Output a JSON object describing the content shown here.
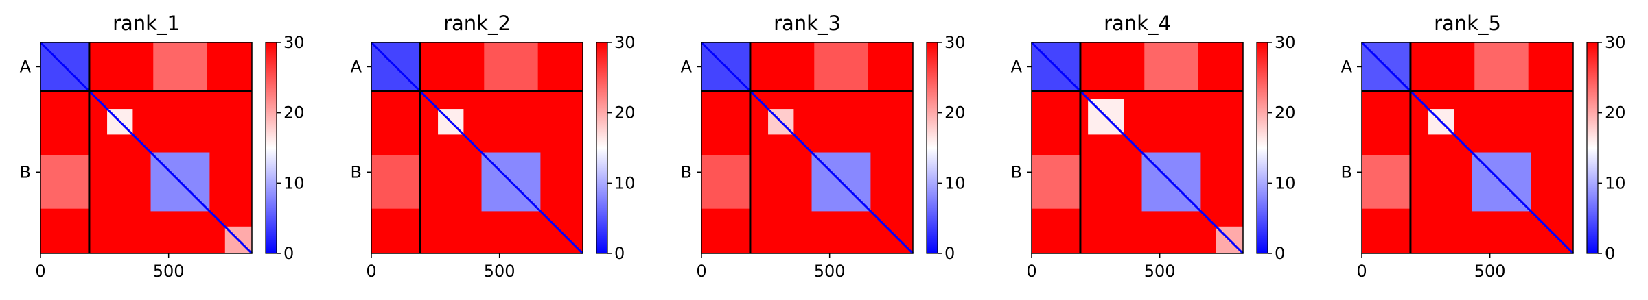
{
  "chart_data": [
    {
      "type": "heatmap",
      "title": "rank_1",
      "xlabel": "",
      "ylabel": "",
      "x_range": [
        0,
        825
      ],
      "x_ticks": [
        0,
        500
      ],
      "y_range": [
        0,
        825
      ],
      "chain_boundary": 190,
      "y_categories": [
        {
          "label": "A",
          "center": 95
        },
        {
          "label": "B",
          "center": 507
        }
      ],
      "colorbar": {
        "min": 0,
        "max": 30,
        "ticks": [
          0,
          10,
          20,
          30
        ],
        "colors": [
          "#0000ff",
          "#ffffff",
          "#ff0000"
        ]
      },
      "blocks": [
        {
          "x0": 0,
          "x1": 190,
          "y0": 0,
          "y1": 190,
          "value": 4
        },
        {
          "x0": 430,
          "x1": 660,
          "y0": 430,
          "y1": 660,
          "value": 8
        },
        {
          "x0": 260,
          "x1": 360,
          "y0": 260,
          "y1": 360,
          "value": 16
        },
        {
          "x0": 720,
          "x1": 825,
          "y0": 720,
          "y1": 825,
          "value": 20
        },
        {
          "x0": 440,
          "x1": 650,
          "y0": 0,
          "y1": 190,
          "value": 24
        },
        {
          "x0": 0,
          "x1": 190,
          "y0": 440,
          "y1": 650,
          "value": 24
        }
      ]
    },
    {
      "type": "heatmap",
      "title": "rank_2",
      "xlabel": "",
      "ylabel": "",
      "x_range": [
        0,
        825
      ],
      "x_ticks": [
        0,
        500
      ],
      "y_range": [
        0,
        825
      ],
      "chain_boundary": 190,
      "y_categories": [
        {
          "label": "A",
          "center": 95
        },
        {
          "label": "B",
          "center": 507
        }
      ],
      "colorbar": {
        "min": 0,
        "max": 30,
        "ticks": [
          0,
          10,
          20,
          30
        ],
        "colors": [
          "#0000ff",
          "#ffffff",
          "#ff0000"
        ]
      },
      "blocks": [
        {
          "x0": 0,
          "x1": 190,
          "y0": 0,
          "y1": 190,
          "value": 4
        },
        {
          "x0": 430,
          "x1": 660,
          "y0": 430,
          "y1": 660,
          "value": 8
        },
        {
          "x0": 260,
          "x1": 360,
          "y0": 260,
          "y1": 360,
          "value": 16
        },
        {
          "x0": 440,
          "x1": 650,
          "y0": 0,
          "y1": 190,
          "value": 25
        },
        {
          "x0": 0,
          "x1": 190,
          "y0": 440,
          "y1": 650,
          "value": 25
        }
      ]
    },
    {
      "type": "heatmap",
      "title": "rank_3",
      "xlabel": "",
      "ylabel": "",
      "x_range": [
        0,
        825
      ],
      "x_ticks": [
        0,
        500
      ],
      "y_range": [
        0,
        825
      ],
      "chain_boundary": 190,
      "y_categories": [
        {
          "label": "A",
          "center": 95
        },
        {
          "label": "B",
          "center": 507
        }
      ],
      "colorbar": {
        "min": 0,
        "max": 30,
        "ticks": [
          0,
          10,
          20,
          30
        ],
        "colors": [
          "#0000ff",
          "#ffffff",
          "#ff0000"
        ]
      },
      "blocks": [
        {
          "x0": 0,
          "x1": 190,
          "y0": 0,
          "y1": 190,
          "value": 4
        },
        {
          "x0": 430,
          "x1": 660,
          "y0": 430,
          "y1": 660,
          "value": 8
        },
        {
          "x0": 260,
          "x1": 360,
          "y0": 260,
          "y1": 360,
          "value": 18
        },
        {
          "x0": 440,
          "x1": 650,
          "y0": 0,
          "y1": 190,
          "value": 25
        },
        {
          "x0": 0,
          "x1": 190,
          "y0": 440,
          "y1": 650,
          "value": 25
        }
      ]
    },
    {
      "type": "heatmap",
      "title": "rank_4",
      "xlabel": "",
      "ylabel": "",
      "x_range": [
        0,
        825
      ],
      "x_ticks": [
        0,
        500
      ],
      "y_range": [
        0,
        825
      ],
      "chain_boundary": 190,
      "y_categories": [
        {
          "label": "A",
          "center": 95
        },
        {
          "label": "B",
          "center": 507
        }
      ],
      "colorbar": {
        "min": 0,
        "max": 30,
        "ticks": [
          0,
          10,
          20,
          30
        ],
        "colors": [
          "#0000ff",
          "#ffffff",
          "#ff0000"
        ]
      },
      "blocks": [
        {
          "x0": 0,
          "x1": 190,
          "y0": 0,
          "y1": 190,
          "value": 4
        },
        {
          "x0": 430,
          "x1": 660,
          "y0": 430,
          "y1": 660,
          "value": 8
        },
        {
          "x0": 220,
          "x1": 360,
          "y0": 220,
          "y1": 360,
          "value": 16
        },
        {
          "x0": 720,
          "x1": 825,
          "y0": 720,
          "y1": 825,
          "value": 20
        },
        {
          "x0": 440,
          "x1": 650,
          "y0": 0,
          "y1": 190,
          "value": 24
        },
        {
          "x0": 0,
          "x1": 190,
          "y0": 440,
          "y1": 650,
          "value": 24
        }
      ]
    },
    {
      "type": "heatmap",
      "title": "rank_5",
      "xlabel": "",
      "ylabel": "",
      "x_range": [
        0,
        825
      ],
      "x_ticks": [
        0,
        500
      ],
      "y_range": [
        0,
        825
      ],
      "chain_boundary": 190,
      "y_categories": [
        {
          "label": "A",
          "center": 95
        },
        {
          "label": "B",
          "center": 507
        }
      ],
      "colorbar": {
        "min": 0,
        "max": 30,
        "ticks": [
          0,
          10,
          20,
          30
        ],
        "colors": [
          "#0000ff",
          "#ffffff",
          "#ff0000"
        ]
      },
      "blocks": [
        {
          "x0": 0,
          "x1": 190,
          "y0": 0,
          "y1": 190,
          "value": 5
        },
        {
          "x0": 430,
          "x1": 660,
          "y0": 430,
          "y1": 660,
          "value": 8
        },
        {
          "x0": 260,
          "x1": 360,
          "y0": 260,
          "y1": 360,
          "value": 16
        },
        {
          "x0": 440,
          "x1": 650,
          "y0": 0,
          "y1": 190,
          "value": 24
        },
        {
          "x0": 0,
          "x1": 190,
          "y0": 440,
          "y1": 650,
          "value": 24
        }
      ]
    }
  ]
}
